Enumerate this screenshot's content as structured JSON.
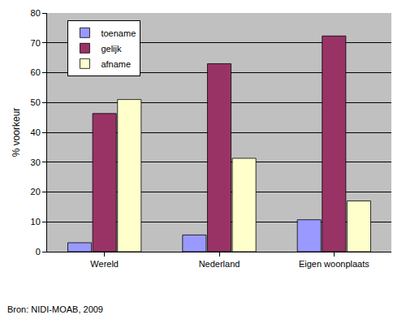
{
  "chart_data": {
    "type": "bar",
    "categories": [
      "Wereld",
      "Nederland",
      "Eigen woonplaats"
    ],
    "series": [
      {
        "name": "toename",
        "color": "#9999ff",
        "values": [
          3,
          5.6,
          10.7
        ]
      },
      {
        "name": "gelijk",
        "color": "#993366",
        "values": [
          46.3,
          63,
          72.3
        ]
      },
      {
        "name": "afname",
        "color": "#ffffcc",
        "values": [
          51,
          31.3,
          17
        ]
      }
    ],
    "y_label": "% voorkeur",
    "ylim": [
      0,
      80
    ],
    "yticks": [
      0,
      10,
      20,
      30,
      40,
      50,
      60,
      70,
      80
    ],
    "grid": true,
    "legend": "top-left",
    "annotations": [
      "Bron: NIDI-MOAB, 2009"
    ]
  }
}
